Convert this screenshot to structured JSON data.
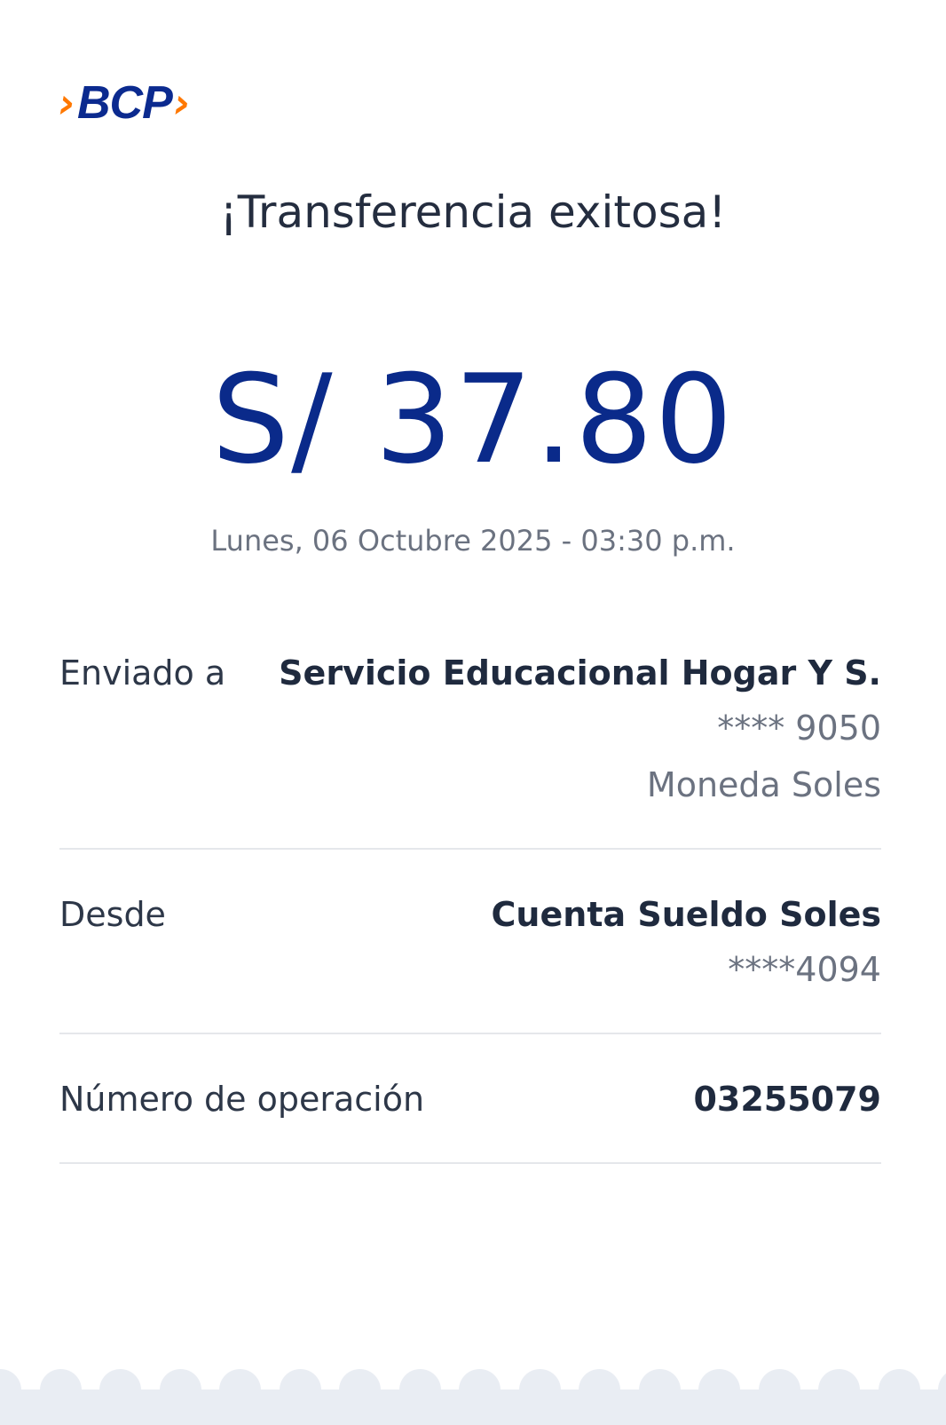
{
  "brand": {
    "name": "BCP",
    "colors": {
      "blue": "#0b2a8f",
      "orange": "#ff7800"
    }
  },
  "title": "¡Transferencia exitosa!",
  "amount": "S/ 37.80",
  "datetime": "Lunes, 06 Octubre 2025 - 03:30 p.m.",
  "details": {
    "sent_to": {
      "label": "Enviado a",
      "name": "Servicio Educacional Hogar Y S.",
      "account": "**** 9050",
      "currency": "Moneda Soles"
    },
    "from": {
      "label": "Desde",
      "name": "Cuenta Sueldo Soles",
      "account": "****4094"
    },
    "operation": {
      "label": "Número de operación",
      "value": "03255079"
    }
  }
}
